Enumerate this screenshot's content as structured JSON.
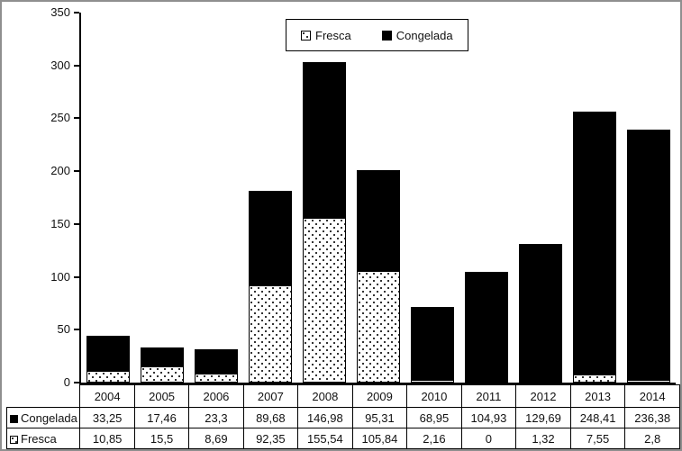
{
  "colors": {
    "series_black": "#000000",
    "series_dotted_bg": "#ffffff",
    "frame_border": "#8f8f8f",
    "axis": "#000000",
    "text": "#111111"
  },
  "chart_data": {
    "type": "bar",
    "stacked": true,
    "title": "",
    "xlabel": "",
    "ylabel": "",
    "categories": [
      "2004",
      "2005",
      "2006",
      "2007",
      "2008",
      "2009",
      "2010",
      "2011",
      "2012",
      "2013",
      "2014"
    ],
    "series": [
      {
        "name": "Fresca",
        "style": "dotted-white",
        "values": [
          10.85,
          15.5,
          8.69,
          92.35,
          155.54,
          105.84,
          2.16,
          0,
          1.32,
          7.55,
          2.8
        ]
      },
      {
        "name": "Congelada",
        "style": "solid-black",
        "values": [
          33.25,
          17.46,
          23.3,
          89.68,
          146.98,
          95.31,
          68.95,
          104.93,
          129.69,
          248.41,
          236.38
        ]
      }
    ],
    "ylim": [
      0,
      350
    ],
    "yticks": [
      0,
      50,
      100,
      150,
      200,
      250,
      300,
      350
    ],
    "grid": false,
    "legend_position": "top-center"
  },
  "legend": {
    "items": [
      {
        "label": "Fresca",
        "swatch": "dotted"
      },
      {
        "label": "Congelada",
        "swatch": "black"
      }
    ]
  },
  "data_table": {
    "rows": [
      {
        "label": "Congelada",
        "swatch": "black",
        "cells": [
          "33,25",
          "17,46",
          "23,3",
          "89,68",
          "146,98",
          "95,31",
          "68,95",
          "104,93",
          "129,69",
          "248,41",
          "236,38"
        ]
      },
      {
        "label": "Fresca",
        "swatch": "dotted",
        "cells": [
          "10,85",
          "15,5",
          "8,69",
          "92,35",
          "155,54",
          "105,84",
          "2,16",
          "0",
          "1,32",
          "7,55",
          "2,8"
        ]
      }
    ]
  }
}
